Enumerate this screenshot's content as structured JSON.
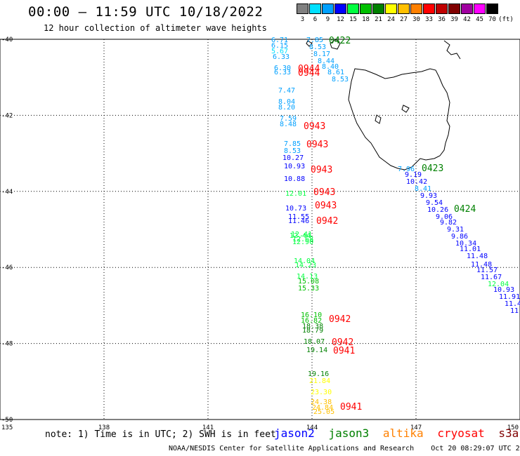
{
  "header": {
    "title": "00:00 – 11:59 UTC 10/18/2022",
    "subtitle": "12 hour collection of altimeter wave heights"
  },
  "scale": {
    "unit": "(ft)",
    "levels": [
      {
        "label": "3",
        "color": "#808080"
      },
      {
        "label": "6",
        "color": "#00e0ff"
      },
      {
        "label": "9",
        "color": "#00a0ff"
      },
      {
        "label": "12",
        "color": "#0000ff"
      },
      {
        "label": "15",
        "color": "#00ff40"
      },
      {
        "label": "18",
        "color": "#00c000"
      },
      {
        "label": "21",
        "color": "#008000"
      },
      {
        "label": "24",
        "color": "#ffff00"
      },
      {
        "label": "27",
        "color": "#ffc000"
      },
      {
        "label": "30",
        "color": "#ff8000"
      },
      {
        "label": "33",
        "color": "#ff0000"
      },
      {
        "label": "36",
        "color": "#c00000"
      },
      {
        "label": "39",
        "color": "#800000"
      },
      {
        "label": "42",
        "color": "#a000a0"
      },
      {
        "label": "45",
        "color": "#ff00ff"
      },
      {
        "label": "70",
        "color": "#000000"
      }
    ]
  },
  "axes": {
    "lat_labels": [
      "-40",
      "-42",
      "-44",
      "-46",
      "-48",
      "-50"
    ],
    "lon_labels": [
      "135",
      "138",
      "141",
      "144",
      "147",
      "150"
    ]
  },
  "times": {
    "jason3_a": "0422",
    "jason3_b": "0423",
    "jason3_c": "0424",
    "s1": "0944",
    "s2": "0944",
    "s3": "0943",
    "s4": "0943",
    "s5": "0943",
    "s6": "0943",
    "s7": "0943",
    "s8": "0942",
    "s9": "0942",
    "s10": "0942",
    "s11": "0941",
    "s12": "0941"
  },
  "track_a": {
    "color_ref": "sat",
    "values": [
      "6.71",
      "6.15",
      "5.67",
      "6.33",
      "6.30",
      "6.33",
      "7.47",
      "8.04",
      "8.20",
      "7.59",
      "8.48",
      "7.85",
      "8.53",
      "10.27",
      "10.93",
      "10.88",
      "12.01",
      "10.73",
      "11.55",
      "11.46",
      "12.44",
      "12.41",
      "12.68",
      "12.90",
      "14.04",
      "14.23",
      "14.13",
      "15.08",
      "15.33",
      "16.10",
      "16.82",
      "18.38",
      "18.79",
      "18.07",
      "19.14",
      "19.16",
      "21.84",
      "23.30",
      "24.38",
      "24.84",
      "25.05"
    ]
  },
  "track_b": {
    "values": [
      "7.85",
      "8.53",
      "8.17",
      "8.44",
      "8.40",
      "8.61",
      "8.53"
    ]
  },
  "track_c": {
    "values": [
      "7.96",
      "9.19",
      "10.42",
      "8.41",
      "9.93",
      "9.54",
      "10.26",
      "9.06",
      "9.82",
      "9.31",
      "9.86",
      "10.34",
      "11.01",
      "11.48",
      "11.48",
      "11.57",
      "11.67",
      "12.04",
      "10.93",
      "11.91",
      "11.4",
      "11"
    ]
  },
  "footer": {
    "note": "note: 1) Time is in UTC; 2) SWH is in feet",
    "legend": [
      {
        "name": "jason2",
        "color": "#0000ff"
      },
      {
        "name": "jason3",
        "color": "#008000"
      },
      {
        "name": "altika",
        "color": "#ff8000"
      },
      {
        "name": "cryosat",
        "color": "#ff0000"
      },
      {
        "name": "s3a",
        "color": "#800000"
      }
    ],
    "credit": "NOAA/NESDIS Center for Satellite Applications and Research",
    "generated": "Oct 20 08:29:07 UTC 2022"
  }
}
